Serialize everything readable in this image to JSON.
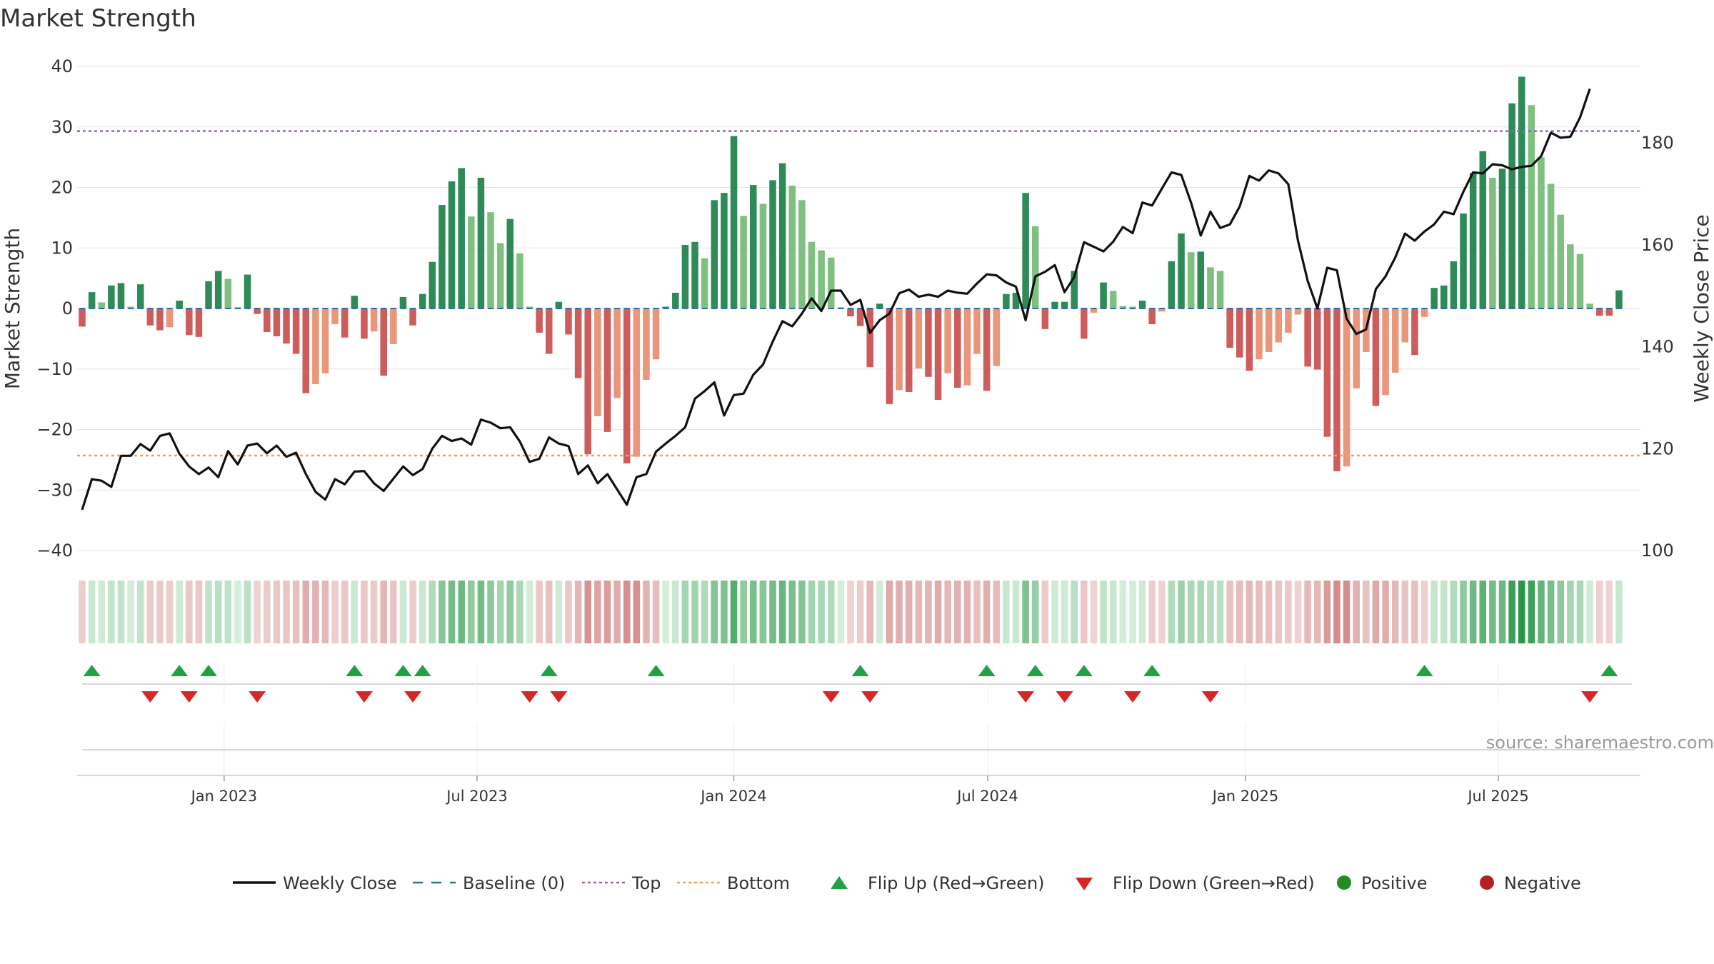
{
  "chart_data": {
    "type": "bar",
    "title": "Market Strength",
    "ylabel_left": "Market Strength",
    "ylabel_right": "Weekly Close Price",
    "ylim_left": [
      -40,
      40
    ],
    "yticks_left": [
      40,
      30,
      20,
      10,
      0,
      -10,
      -20,
      -30,
      -40
    ],
    "yticks_left_labels": [
      "40",
      "30",
      "20",
      "10",
      "0",
      "−10",
      "−20",
      "−30",
      "−40"
    ],
    "ylim_right": [
      100,
      195
    ],
    "yticks_right": [
      180,
      160,
      140,
      120,
      100
    ],
    "yticks_right_labels": [
      "180",
      "160",
      "140",
      "120",
      "100"
    ],
    "x_start": "2022-09-19",
    "x_weeks": 158,
    "x_ticks": [
      {
        "label": "Jan 2023",
        "week": 14.6
      },
      {
        "label": "Jul 2023",
        "week": 40.6
      },
      {
        "label": "Jan 2024",
        "week": 67.0
      },
      {
        "label": "Jul 2024",
        "week": 93.1
      },
      {
        "label": "Jan 2025",
        "week": 119.6
      },
      {
        "label": "Jul 2025",
        "week": 145.6
      }
    ],
    "top_level": 29.3,
    "bottom_level": -24.3,
    "strength": [
      -3,
      2.7,
      1,
      3.8,
      4.2,
      0.3,
      4,
      -2.8,
      -3.6,
      -3.1,
      1.3,
      -4.4,
      -4.7,
      4.5,
      6.2,
      4.9,
      0.2,
      5.6,
      -0.9,
      -3.9,
      -4.6,
      -5.8,
      -7.5,
      -14,
      -12.5,
      -10.7,
      -2.6,
      -4.8,
      2.1,
      -5,
      -3.8,
      -11.1,
      -5.9,
      1.9,
      -2.8,
      2.4,
      7.7,
      17.1,
      21,
      23.2,
      15.2,
      21.6,
      15.9,
      10.8,
      14.8,
      9.1,
      0.3,
      -4,
      -7.5,
      1.1,
      -4.3,
      -11.5,
      -24.1,
      -17.8,
      -20.4,
      -14.8,
      -25.6,
      -24.5,
      -11.8,
      -8.4,
      0.3,
      2.6,
      10.5,
      11,
      8.3,
      17.9,
      19.1,
      28.5,
      15.3,
      20.4,
      17.3,
      21.2,
      24,
      20.3,
      17.9,
      11,
      9.6,
      8.4,
      0.2,
      -1.3,
      -2.9,
      -9.7,
      0.8,
      -15.8,
      -13.5,
      -13.8,
      -9.9,
      -11.3,
      -15.1,
      -10.7,
      -13.1,
      -12.7,
      -7.5,
      -13.6,
      -9.5,
      2.4,
      2.6,
      19.1,
      13.6,
      -3.4,
      1.1,
      1.1,
      6.2,
      -5,
      -0.7,
      4.3,
      2.9,
      0.4,
      0.3,
      1.3,
      -2.6,
      -0.5,
      7.8,
      12.4,
      9.3,
      9.4,
      6.8,
      6.2,
      -6.5,
      -8.1,
      -10.3,
      -8.4,
      -7.2,
      -5.6,
      -4,
      -1,
      -9.6,
      -10.1,
      -21.2,
      -26.9,
      -26.1,
      -13.2,
      -7.2,
      -16.1,
      -14.3,
      -10.6,
      -5.6,
      -7.7,
      -1.4,
      3.4,
      3.8,
      7.8,
      15.7,
      22.4,
      26,
      21.6,
      23.1,
      33.9,
      38.3,
      33.6,
      25,
      20.6,
      15.5,
      10.6,
      9,
      0.8,
      -1.2,
      -1.2,
      3
    ],
    "close": [
      108,
      114,
      113.7,
      112.5,
      118.6,
      118.6,
      120.9,
      119.6,
      122.5,
      123,
      119,
      116.5,
      115,
      116.3,
      114.4,
      119.5,
      116.9,
      120.6,
      121,
      119.1,
      120.6,
      118.4,
      119.2,
      115,
      111.5,
      110,
      114,
      113,
      115.5,
      115.6,
      113.2,
      111.7,
      114.1,
      116.5,
      114.8,
      116,
      120,
      122.5,
      121.5,
      122,
      120.8,
      125.7,
      125.1,
      124,
      124.2,
      121.4,
      117.4,
      118,
      122.2,
      121,
      120.5,
      115,
      116.7,
      113.2,
      115,
      112,
      109,
      114.4,
      115,
      119.4,
      121,
      122.5,
      124.2,
      129.8,
      131.3,
      133,
      126.5,
      130.5,
      130.8,
      134.5,
      136.5,
      141,
      145,
      144,
      146.5,
      149.5,
      147,
      151,
      151,
      148.2,
      149.2,
      142.7,
      145.2,
      146.5,
      150.5,
      151.2,
      149.8,
      150.2,
      149.8,
      151,
      150.6,
      150.4,
      152.4,
      154.2,
      154,
      152.6,
      151.8,
      145.2,
      153.8,
      154.7,
      156,
      150.7,
      153.7,
      160.5,
      159.6,
      158.7,
      160.6,
      163.5,
      162.3,
      168.3,
      167.7,
      171,
      174.2,
      173.7,
      168.3,
      161.8,
      166.5,
      163.3,
      164,
      167.5,
      173.5,
      172.6,
      174.6,
      174,
      171.9,
      160.8,
      152.9,
      147.5,
      155.5,
      155,
      145.5,
      142.5,
      143.4,
      151.3,
      153.8,
      157.5,
      162.2,
      160.8,
      162.6,
      164,
      166.5,
      166,
      170.4,
      174.2,
      174,
      175.8,
      175.6,
      174.8,
      175.3,
      175.5,
      177.4,
      182,
      181,
      181.2,
      185,
      190.6
    ],
    "positive_color": "#1f8a3a",
    "negative_color": "#b52b2b",
    "flips_up": [
      1,
      10,
      13,
      28,
      33,
      35,
      48,
      59,
      80,
      93,
      98,
      103,
      110,
      138,
      157
    ],
    "flips_down": [
      7,
      11,
      18,
      29,
      34,
      46,
      49,
      77,
      81,
      97,
      101,
      108,
      116,
      155
    ],
    "legend": [
      {
        "label": "Weekly Close",
        "kind": "line",
        "color": "#111111"
      },
      {
        "label": "Baseline (0)",
        "kind": "dash",
        "color": "#2f6fa0"
      },
      {
        "label": "Top",
        "kind": "dot",
        "color": "#9467bd"
      },
      {
        "label": "Bottom",
        "kind": "dot",
        "color": "#f0a060"
      },
      {
        "label": "Flip Up (Red→Green)",
        "kind": "tri-up",
        "color": "#22a046"
      },
      {
        "label": "Flip Down (Green→Red)",
        "kind": "tri-down",
        "color": "#d62728"
      },
      {
        "label": "Positive",
        "kind": "circle",
        "color": "#228b22"
      },
      {
        "label": "Negative",
        "kind": "circle",
        "color": "#b22222"
      }
    ],
    "source": "source: sharemaestro.com"
  }
}
